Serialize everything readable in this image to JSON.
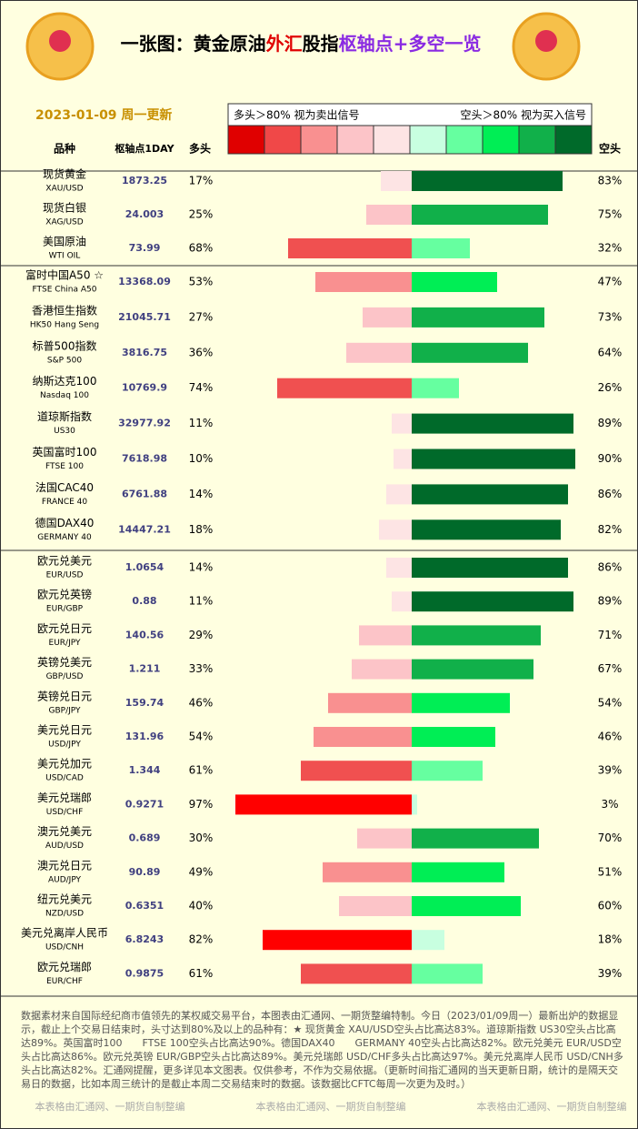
{
  "chart_data": {
    "type": "diverging",
    "title_parts": [
      {
        "text": "一张图：黄金原油",
        "color": "#000000"
      },
      {
        "text": "外汇",
        "color": "#e00000"
      },
      {
        "text": "股指",
        "color": "#000000"
      },
      {
        "text": "枢轴点+多空一览",
        "color": "#8a2be2"
      }
    ],
    "date": "2023-01-09 周一更新",
    "legend_left": "多头＞80% 视为卖出信号",
    "legend_right": "空头＞80% 视为买入信号",
    "legend_colors": [
      "#e00000",
      "#f04848",
      "#f99090",
      "#fcc4c8",
      "#fde4e4",
      "#c8ffe0",
      "#66ffa0",
      "#00ee55",
      "#11b04a",
      "#006a2a"
    ],
    "headers": {
      "name": "品种",
      "pivot": "枢轴点1DAY",
      "long": "多头",
      "short": "空头"
    },
    "categories": [
      "现货黄金",
      "现货白银",
      "美国原油",
      "富时中国A50 ☆",
      "香港恒生指数",
      "标普500指数",
      "纳斯达克100",
      "道琼斯指数",
      "英国富时100",
      "法国CAC40",
      "德国DAX40",
      "欧元兑美元",
      "欧元兑英镑",
      "欧元兑日元",
      "英镑兑美元",
      "英镑兑日元",
      "美元兑日元",
      "美元兑加元",
      "美元兑瑞郎",
      "澳元兑美元",
      "澳元兑日元",
      "纽元兑美元",
      "美元兑离岸人民币",
      "欧元兑瑞郎"
    ],
    "codes": [
      "XAU/USD",
      "XAG/USD",
      "WTI OIL",
      "FTSE China A50",
      "HK50 Hang Seng",
      "S&P 500",
      "Nasdaq 100",
      "US30",
      "FTSE 100",
      "FRANCE 40",
      "GERMANY 40",
      "EUR/USD",
      "EUR/GBP",
      "EUR/JPY",
      "GBP/USD",
      "GBP/JPY",
      "USD/JPY",
      "USD/CAD",
      "USD/CHF",
      "AUD/USD",
      "AUD/JPY",
      "NZD/USD",
      "USD/CNH",
      "EUR/CHF"
    ],
    "pivots": [
      1873.25,
      24.003,
      73.99,
      13368.09,
      21045.71,
      3816.75,
      10769.9,
      32977.92,
      7618.98,
      6761.88,
      14447.21,
      1.0654,
      0.88,
      140.56,
      1.211,
      159.74,
      131.96,
      1.344,
      0.9271,
      0.689,
      90.89,
      0.6351,
      6.8243,
      0.9875
    ],
    "series": [
      {
        "name": "多头",
        "values": [
          17,
          25,
          68,
          53,
          27,
          36,
          74,
          11,
          10,
          14,
          18,
          14,
          11,
          29,
          33,
          46,
          54,
          61,
          97,
          30,
          49,
          40,
          82,
          61
        ],
        "value_labels": [
          "17%",
          "25%",
          "68%",
          "53%",
          "27%",
          "36%",
          "74%",
          "11%",
          "10%",
          "14%",
          "18%",
          "14%",
          "11%",
          "29%",
          "33%",
          "46%",
          "54%",
          "61%",
          "97%",
          "30%",
          "49%",
          "40%",
          "82%",
          "61%"
        ],
        "colors": [
          "#fde4e4",
          "#fcc4c8",
          "#f05050",
          "#f99090",
          "#fcc4c8",
          "#fcc4c8",
          "#f05050",
          "#fde4e4",
          "#fde4e4",
          "#fde4e4",
          "#fde4e4",
          "#fde4e4",
          "#fde4e4",
          "#fcc4c8",
          "#fcc4c8",
          "#f99090",
          "#f99090",
          "#f05050",
          "#ff0000",
          "#fcc4c8",
          "#f99090",
          "#fcc4c8",
          "#ff0000",
          "#f05050"
        ]
      },
      {
        "name": "空头",
        "values": [
          83,
          75,
          32,
          47,
          73,
          64,
          26,
          89,
          90,
          86,
          82,
          86,
          89,
          71,
          67,
          54,
          46,
          39,
          3,
          70,
          51,
          60,
          18,
          39
        ],
        "value_labels": [
          "83%",
          "75%",
          "32%",
          "47%",
          "73%",
          "64%",
          "26%",
          "89%",
          "90%",
          "86%",
          "82%",
          "86%",
          "89%",
          "71%",
          "67%",
          "54%",
          "46%",
          "39%",
          "3%",
          "70%",
          "51%",
          "60%",
          "18%",
          "39%"
        ],
        "colors": [
          "#006a2a",
          "#11b04a",
          "#66ffa0",
          "#00ee55",
          "#11b04a",
          "#11b04a",
          "#66ffa0",
          "#006a2a",
          "#006a2a",
          "#006a2a",
          "#006a2a",
          "#006a2a",
          "#006a2a",
          "#11b04a",
          "#11b04a",
          "#00ee55",
          "#00ee55",
          "#66ffa0",
          "#c8ffe0",
          "#11b04a",
          "#00ee55",
          "#00ee55",
          "#c8ffe0",
          "#66ffa0"
        ]
      }
    ],
    "footer": "数据素材来自国际经纪商市值领先的某权威交易平台，本图表由汇通网、一期货整编特制。今日（2023/01/09周一）最新出炉的数据显示，截止上个交易日结束时，头寸达到80%及以上的品种有：★ 现货黄金 XAU/USD空头占比高达83%。道琼斯指数 US30空头占比高达89%。英国富时100　　FTSE 100空头占比高达90%。德国DAX40　　GERMANY 40空头占比高达82%。欧元兑美元 EUR/USD空头占比高达86%。欧元兑英镑 EUR/GBP空头占比高达89%。美元兑瑞郎 USD/CHF多头占比高达97%。美元兑离岸人民币 USD/CNH多头占比高达82%。汇通网提醒，更多详见本文图表。仅供参考，不作为交易依据。（更新时间指汇通网的当天更新日期，统计的是隔天交易日的数据，比如本周三统计的是截止本周二交易结束时的数据。该数据比CFTC每周一次更为及时。）",
    "watermarks": [
      "本表格由汇通网、一期货自制整编",
      "本表格由汇通网、一期货自制整编",
      "本表格由汇通网、一期货自制整编"
    ]
  }
}
